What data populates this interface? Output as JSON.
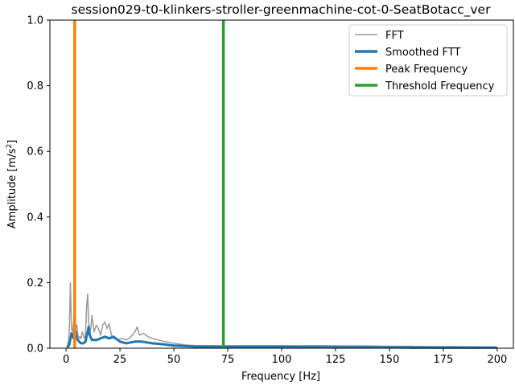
{
  "chart_data": {
    "type": "line",
    "title": "session029-t0-klinkers-stroller-greenmachine-cot-0-SeatBotacc_ver",
    "xlabel": "Frequency [Hz]",
    "ylabel_main": "Amplitude [m/s",
    "ylabel_sup": "2",
    "ylabel_end": "]",
    "xlim": [
      -7.5,
      207.5
    ],
    "ylim": [
      0,
      1.0
    ],
    "xticks": [
      0,
      25,
      50,
      75,
      100,
      125,
      150,
      175,
      200
    ],
    "yticks": [
      0.0,
      0.2,
      0.4,
      0.6,
      0.8,
      1.0
    ],
    "xtick_labels": [
      "0",
      "25",
      "50",
      "75",
      "100",
      "125",
      "150",
      "175",
      "200"
    ],
    "ytick_labels": [
      "0.0",
      "0.2",
      "0.4",
      "0.6",
      "0.8",
      "1.0"
    ],
    "grid": false,
    "legend_position": "top-right",
    "colors": {
      "fft": "#999999",
      "smoothed": "#1f77b4",
      "peak": "#ff7f0e",
      "threshold": "#2ca02c"
    },
    "series": [
      {
        "name": "FFT",
        "x": [
          0.5,
          1.0,
          1.5,
          2.0,
          2.5,
          3.0,
          3.5,
          4.0,
          4.5,
          5.0,
          5.5,
          6.0,
          6.5,
          7.0,
          7.5,
          8.0,
          8.5,
          9.0,
          9.5,
          10.0,
          10.5,
          11.0,
          11.5,
          12.0,
          13.0,
          14.0,
          15.0,
          16.0,
          17.0,
          18.0,
          19.0,
          20.0,
          21.0,
          22.0,
          24.0,
          26.0,
          28.0,
          30.0,
          32.0,
          33.0,
          34.0,
          36.0,
          38.0,
          40.0,
          43.0,
          46.0,
          50.0,
          55.0,
          60.0,
          70.0,
          80.0,
          90.0,
          100.0,
          110.0,
          120.0,
          130.0,
          140.0,
          150.0,
          160.0,
          170.0,
          180.0,
          190.0,
          200.0
        ],
        "y": [
          0.005,
          0.02,
          0.05,
          0.2,
          0.06,
          0.05,
          0.08,
          0.15,
          0.06,
          0.07,
          0.04,
          0.03,
          0.035,
          0.03,
          0.05,
          0.04,
          0.03,
          0.04,
          0.12,
          0.165,
          0.08,
          0.05,
          0.06,
          0.1,
          0.05,
          0.07,
          0.06,
          0.04,
          0.07,
          0.08,
          0.06,
          0.075,
          0.04,
          0.03,
          0.025,
          0.03,
          0.025,
          0.035,
          0.05,
          0.065,
          0.04,
          0.045,
          0.035,
          0.03,
          0.025,
          0.02,
          0.015,
          0.01,
          0.008,
          0.008,
          0.008,
          0.008,
          0.008,
          0.008,
          0.008,
          0.007,
          0.007,
          0.006,
          0.006,
          0.005,
          0.005,
          0.004,
          0.003
        ]
      },
      {
        "name": "Smoothed FTT",
        "x": [
          0.5,
          1.5,
          2.5,
          3.0,
          3.5,
          4.0,
          4.5,
          5.0,
          6.0,
          7.0,
          8.0,
          9.0,
          10.0,
          10.5,
          11.0,
          12.0,
          14.0,
          16.0,
          18.0,
          20.0,
          22.0,
          25.0,
          28.0,
          32.0,
          35.0,
          40.0,
          45.0,
          50.0,
          60.0,
          70.0,
          80.0,
          100.0,
          120.0,
          140.0,
          160.0,
          180.0,
          200.0
        ],
        "y": [
          0.002,
          0.01,
          0.045,
          0.04,
          0.03,
          0.06,
          0.05,
          0.03,
          0.02,
          0.015,
          0.015,
          0.02,
          0.05,
          0.065,
          0.04,
          0.025,
          0.025,
          0.03,
          0.035,
          0.03,
          0.035,
          0.02,
          0.015,
          0.02,
          0.02,
          0.015,
          0.012,
          0.008,
          0.005,
          0.004,
          0.004,
          0.004,
          0.003,
          0.003,
          0.002,
          0.002,
          0.002
        ]
      },
      {
        "name": "Peak Frequency",
        "x": 4.0
      },
      {
        "name": "Threshold Frequency",
        "x": 73.0
      }
    ]
  }
}
